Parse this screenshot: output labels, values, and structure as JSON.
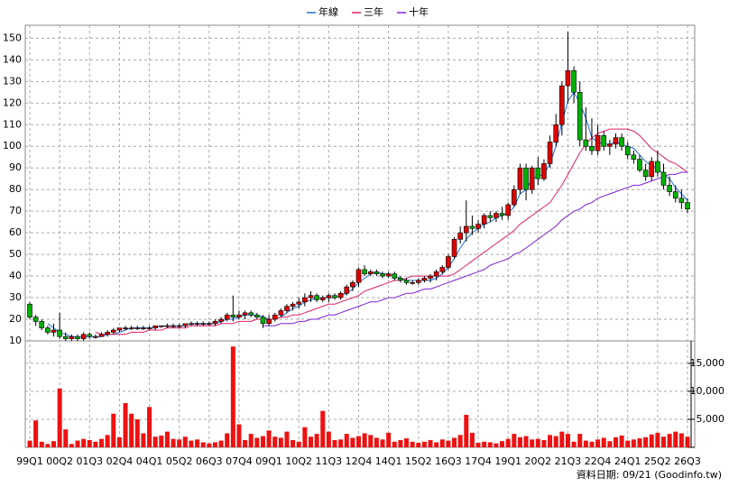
{
  "chart_data": {
    "type": "candlestick",
    "categories": [
      "99Q1",
      null,
      null,
      null,
      null,
      "00Q2",
      null,
      null,
      null,
      null,
      "01Q3",
      null,
      null,
      null,
      null,
      "02Q4",
      null,
      null,
      null,
      null,
      "04Q1",
      null,
      null,
      null,
      null,
      "05Q2",
      null,
      null,
      null,
      null,
      "06Q3",
      null,
      null,
      null,
      null,
      "07Q4",
      null,
      null,
      null,
      null,
      "09Q1",
      null,
      null,
      null,
      null,
      "10Q2",
      null,
      null,
      null,
      null,
      "11Q3",
      null,
      null,
      null,
      null,
      "12Q4",
      null,
      null,
      null,
      null,
      "14Q1",
      null,
      null,
      null,
      null,
      "15Q2",
      null,
      null,
      null,
      null,
      "16Q3",
      null,
      null,
      null,
      null,
      "17Q4",
      null,
      null,
      null,
      null,
      "19Q1",
      null,
      null,
      null,
      null,
      "20Q2",
      null,
      null,
      null,
      null,
      "21Q3",
      null,
      null,
      null,
      null,
      "22Q4",
      null,
      null,
      null,
      null,
      "24Q1",
      null,
      null,
      null,
      null,
      "25Q2",
      null,
      null,
      null,
      null,
      "26Q3"
    ],
    "candles": [
      [
        27,
        28,
        20,
        21
      ],
      [
        21,
        22,
        17,
        19
      ],
      [
        19,
        20,
        15,
        16
      ],
      [
        16,
        17,
        13,
        14
      ],
      [
        14,
        18,
        12,
        15
      ],
      [
        15,
        23,
        11,
        12
      ],
      [
        12,
        14,
        10,
        11
      ],
      [
        11,
        13,
        10,
        12
      ],
      [
        12,
        13,
        10,
        11
      ],
      [
        11,
        14,
        10,
        13
      ],
      [
        13,
        14,
        11,
        12
      ],
      [
        12,
        13,
        11,
        12
      ],
      [
        12,
        14,
        12,
        13
      ],
      [
        13,
        15,
        12,
        14
      ],
      [
        14,
        16,
        13,
        15
      ],
      [
        15,
        16,
        14,
        16
      ],
      [
        16,
        17,
        15,
        16
      ],
      [
        16,
        17,
        15,
        16
      ],
      [
        16,
        17,
        15,
        16
      ],
      [
        16,
        17,
        15,
        16
      ],
      [
        16,
        17,
        15,
        16
      ],
      [
        16,
        17,
        15,
        17
      ],
      [
        17,
        17,
        16,
        17
      ],
      [
        17,
        18,
        16,
        17
      ],
      [
        17,
        18,
        16,
        17
      ],
      [
        17,
        18,
        16,
        17
      ],
      [
        17,
        18,
        16,
        18
      ],
      [
        18,
        19,
        17,
        18
      ],
      [
        18,
        19,
        17,
        18
      ],
      [
        18,
        19,
        17,
        18
      ],
      [
        18,
        19,
        17,
        18
      ],
      [
        18,
        20,
        17,
        19
      ],
      [
        19,
        21,
        18,
        20
      ],
      [
        20,
        23,
        19,
        22
      ],
      [
        22,
        31,
        19,
        21
      ],
      [
        21,
        24,
        20,
        22
      ],
      [
        22,
        24,
        20,
        23
      ],
      [
        23,
        24,
        21,
        22
      ],
      [
        22,
        23,
        20,
        21
      ],
      [
        21,
        22,
        16,
        18
      ],
      [
        18,
        22,
        17,
        20
      ],
      [
        20,
        23,
        19,
        22
      ],
      [
        22,
        25,
        21,
        24
      ],
      [
        24,
        27,
        23,
        26
      ],
      [
        26,
        28,
        24,
        27
      ],
      [
        27,
        30,
        25,
        28
      ],
      [
        28,
        32,
        26,
        30
      ],
      [
        30,
        33,
        28,
        31
      ],
      [
        31,
        32,
        28,
        29
      ],
      [
        29,
        31,
        28,
        30
      ],
      [
        30,
        32,
        28,
        31
      ],
      [
        31,
        32,
        29,
        30
      ],
      [
        30,
        33,
        29,
        32
      ],
      [
        32,
        36,
        31,
        35
      ],
      [
        35,
        38,
        33,
        37
      ],
      [
        37,
        44,
        35,
        43
      ],
      [
        43,
        45,
        40,
        41
      ],
      [
        41,
        43,
        40,
        42
      ],
      [
        42,
        43,
        40,
        41
      ],
      [
        41,
        42,
        39,
        40
      ],
      [
        40,
        42,
        39,
        41
      ],
      [
        41,
        42,
        38,
        39
      ],
      [
        39,
        40,
        37,
        38
      ],
      [
        38,
        39,
        36,
        37
      ],
      [
        37,
        38,
        36,
        37
      ],
      [
        37,
        39,
        36,
        38
      ],
      [
        38,
        40,
        37,
        39
      ],
      [
        39,
        41,
        37,
        40
      ],
      [
        40,
        43,
        38,
        42
      ],
      [
        42,
        45,
        41,
        44
      ],
      [
        44,
        50,
        43,
        49
      ],
      [
        49,
        58,
        48,
        57
      ],
      [
        57,
        63,
        55,
        60
      ],
      [
        60,
        75,
        56,
        63
      ],
      [
        63,
        68,
        59,
        62
      ],
      [
        62,
        66,
        60,
        64
      ],
      [
        64,
        69,
        62,
        68
      ],
      [
        68,
        70,
        65,
        67
      ],
      [
        67,
        70,
        65,
        69
      ],
      [
        69,
        72,
        66,
        68
      ],
      [
        68,
        74,
        66,
        73
      ],
      [
        73,
        82,
        72,
        80
      ],
      [
        80,
        92,
        78,
        90
      ],
      [
        90,
        92,
        75,
        80
      ],
      [
        80,
        91,
        78,
        90
      ],
      [
        90,
        95,
        82,
        85
      ],
      [
        85,
        94,
        84,
        92
      ],
      [
        92,
        105,
        90,
        102
      ],
      [
        102,
        115,
        100,
        110
      ],
      [
        110,
        130,
        105,
        128
      ],
      [
        128,
        153,
        120,
        135
      ],
      [
        135,
        137,
        120,
        125
      ],
      [
        125,
        130,
        100,
        103
      ],
      [
        103,
        118,
        98,
        100
      ],
      [
        100,
        113,
        96,
        98
      ],
      [
        98,
        110,
        96,
        105
      ],
      [
        105,
        107,
        98,
        100
      ],
      [
        100,
        103,
        96,
        101
      ],
      [
        101,
        106,
        99,
        104
      ],
      [
        104,
        106,
        98,
        100
      ],
      [
        100,
        102,
        94,
        96
      ],
      [
        96,
        98,
        92,
        94
      ],
      [
        94,
        96,
        88,
        89
      ],
      [
        89,
        92,
        84,
        86
      ],
      [
        86,
        95,
        84,
        93
      ],
      [
        93,
        98,
        86,
        88
      ],
      [
        88,
        92,
        80,
        82
      ],
      [
        82,
        86,
        77,
        79
      ],
      [
        79,
        82,
        74,
        76
      ],
      [
        76,
        80,
        71,
        74
      ],
      [
        74,
        76,
        69,
        71
      ]
    ],
    "up_color": "#e00000",
    "down_color": "#00b000",
    "series": [
      {
        "name": "年線",
        "color": "#1e6fd9",
        "values": [
          null,
          null,
          null,
          18,
          16,
          14,
          13,
          12,
          12,
          12,
          12,
          12,
          12,
          13,
          13,
          14,
          15,
          16,
          16,
          16,
          16,
          16,
          17,
          17,
          17,
          17,
          17,
          18,
          18,
          18,
          18,
          18,
          19,
          20,
          20,
          21,
          22,
          22,
          22,
          21,
          20,
          20,
          21,
          23,
          25,
          26,
          28,
          29,
          30,
          30,
          30,
          30,
          31,
          32,
          34,
          37,
          39,
          41,
          42,
          41,
          41,
          40,
          39,
          38,
          38,
          38,
          38,
          38,
          39,
          41,
          44,
          48,
          53,
          57,
          60,
          62,
          64,
          65,
          67,
          68,
          69,
          72,
          78,
          80,
          85,
          86,
          87,
          92,
          100,
          111,
          121,
          125,
          120,
          113,
          104,
          102,
          101,
          101,
          102,
          101,
          100,
          99,
          96,
          93,
          91,
          90,
          87,
          85,
          81,
          78,
          75
        ]
      },
      {
        "name": "三年",
        "color": "#e0206a",
        "values": [
          null,
          null,
          null,
          null,
          null,
          null,
          null,
          null,
          null,
          null,
          null,
          14,
          13,
          13,
          13,
          13,
          13,
          14,
          14,
          14,
          15,
          15,
          15,
          16,
          16,
          16,
          16,
          17,
          17,
          17,
          17,
          17,
          18,
          18,
          18,
          19,
          19,
          19,
          20,
          20,
          20,
          20,
          21,
          21,
          22,
          22,
          23,
          24,
          25,
          26,
          27,
          27,
          28,
          29,
          30,
          31,
          33,
          34,
          35,
          36,
          37,
          38,
          38,
          39,
          40,
          40,
          40,
          40,
          40,
          40,
          40,
          41,
          43,
          45,
          47,
          49,
          51,
          53,
          55,
          57,
          59,
          61,
          64,
          66,
          68,
          70,
          72,
          74,
          78,
          82,
          87,
          92,
          97,
          101,
          104,
          106,
          107,
          108,
          108,
          108,
          108,
          107,
          105,
          102,
          99,
          97,
          95,
          93,
          92,
          90,
          88
        ]
      },
      {
        "name": "十年",
        "color": "#7a22d8",
        "values": [
          null,
          null,
          null,
          null,
          null,
          null,
          null,
          null,
          null,
          null,
          null,
          null,
          null,
          null,
          null,
          null,
          null,
          null,
          null,
          null,
          null,
          null,
          null,
          null,
          null,
          null,
          null,
          null,
          null,
          null,
          null,
          null,
          null,
          null,
          null,
          null,
          null,
          null,
          null,
          17,
          17,
          17,
          18,
          18,
          18,
          19,
          19,
          20,
          20,
          21,
          22,
          22,
          23,
          24,
          25,
          26,
          27,
          28,
          28,
          29,
          30,
          30,
          31,
          32,
          32,
          33,
          34,
          34,
          35,
          36,
          37,
          38,
          39,
          40,
          41,
          42,
          43,
          45,
          46,
          47,
          48,
          50,
          51,
          53,
          55,
          57,
          59,
          61,
          63,
          66,
          68,
          70,
          71,
          73,
          74,
          76,
          77,
          78,
          79,
          80,
          81,
          82,
          82,
          83,
          84,
          85,
          86,
          87,
          87,
          88,
          88
        ]
      }
    ],
    "volume": {
      "color": "#ee1111",
      "values": [
        1200,
        4800,
        1000,
        600,
        1100,
        10500,
        3200,
        600,
        1200,
        1500,
        1300,
        1000,
        1500,
        2200,
        6000,
        1800,
        7900,
        6000,
        5000,
        2500,
        7200,
        1900,
        2100,
        2800,
        1500,
        1400,
        1900,
        1200,
        1400,
        900,
        700,
        900,
        1200,
        2500,
        18000,
        4100,
        1300,
        2400,
        1700,
        2000,
        3000,
        1900,
        1700,
        2800,
        1300,
        1000,
        3600,
        1900,
        2400,
        6500,
        2800,
        1300,
        1400,
        2400,
        1700,
        2000,
        2500,
        2200,
        1700,
        1400,
        2600,
        1000,
        1300,
        1600,
        1000,
        800,
        1000,
        1300,
        900,
        1400,
        1200,
        1700,
        2200,
        5800,
        2600,
        800,
        1000,
        900,
        700,
        1100,
        1500,
        2400,
        1800,
        2000,
        1400,
        1500,
        1300,
        2200,
        2000,
        2800,
        2400,
        1000,
        2400,
        1200,
        1000,
        1400,
        1700,
        1100,
        1800,
        2100,
        1200,
        1400,
        1600,
        1800,
        2300,
        2600,
        1900,
        2400,
        2800,
        2500,
        1900
      ]
    },
    "ylim": [
      10,
      156
    ],
    "yticks": [
      10,
      20,
      30,
      40,
      50,
      60,
      70,
      80,
      90,
      100,
      110,
      120,
      130,
      140,
      150
    ],
    "y2lim": [
      0,
      19000
    ],
    "y2ticks": [
      0,
      {
        "value": 5000,
        "label": "5,000"
      },
      {
        "value": 10000,
        "label": "10,000"
      },
      {
        "value": 15000,
        "label": "15,000"
      }
    ],
    "grid": true,
    "source": "資料日期: 09/21 (Goodinfo.tw)"
  }
}
